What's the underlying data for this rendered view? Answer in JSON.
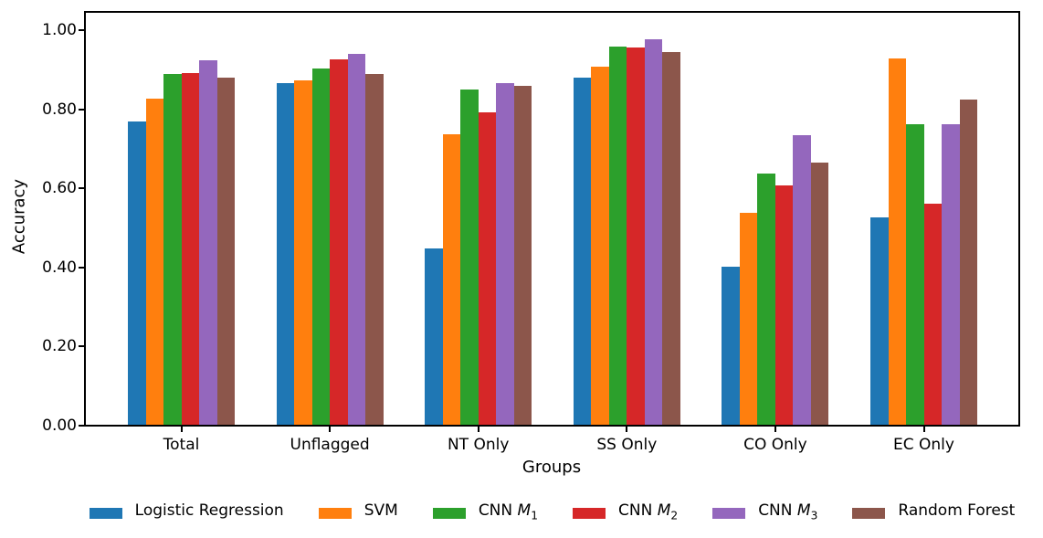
{
  "chart_data": {
    "type": "bar",
    "title": "",
    "xlabel": "Groups",
    "ylabel": "Accuracy",
    "categories": [
      "Total",
      "Unflagged",
      "NT Only",
      "SS Only",
      "CO Only",
      "EC Only"
    ],
    "ylim": [
      0,
      1.05
    ],
    "yticks": [
      0,
      0.2,
      0.4,
      0.6,
      0.8,
      1.0
    ],
    "ytick_labels": [
      "0.00",
      "0.20",
      "0.40",
      "0.60",
      "0.80",
      "1.00"
    ],
    "grid": false,
    "legend_position": "bottom-center",
    "series": [
      {
        "name": "Logistic Regression",
        "label_prefix": "Logistic Regression",
        "label_var": "",
        "label_sub": "",
        "color": "#1f77b4",
        "values": [
          0.768,
          0.867,
          0.448,
          0.88,
          0.402,
          0.527
        ]
      },
      {
        "name": "SVM",
        "label_prefix": "SVM",
        "label_var": "",
        "label_sub": "",
        "color": "#ff7f0e",
        "values": [
          0.826,
          0.872,
          0.737,
          0.908,
          0.537,
          0.929
        ]
      },
      {
        "name": "CNN M1",
        "label_prefix": "CNN ",
        "label_var": "M",
        "label_sub": "1",
        "color": "#2ca02c",
        "values": [
          0.888,
          0.902,
          0.851,
          0.958,
          0.638,
          0.762
        ]
      },
      {
        "name": "CNN M2",
        "label_prefix": "CNN ",
        "label_var": "M",
        "label_sub": "2",
        "color": "#d62728",
        "values": [
          0.892,
          0.925,
          0.792,
          0.956,
          0.607,
          0.561
        ]
      },
      {
        "name": "CNN M3",
        "label_prefix": "CNN ",
        "label_var": "M",
        "label_sub": "3",
        "color": "#9467bd",
        "values": [
          0.924,
          0.94,
          0.867,
          0.978,
          0.734,
          0.762
        ]
      },
      {
        "name": "Random Forest",
        "label_prefix": "Random Forest",
        "label_var": "",
        "label_sub": "",
        "color": "#8c564b",
        "values": [
          0.881,
          0.89,
          0.859,
          0.945,
          0.664,
          0.824
        ]
      }
    ]
  }
}
